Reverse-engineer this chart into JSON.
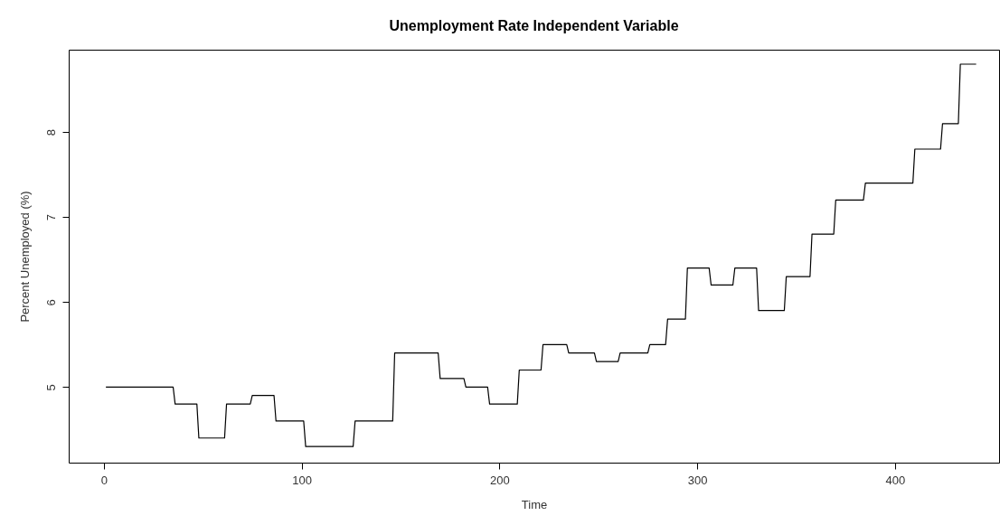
{
  "chart_data": {
    "type": "line",
    "title": "Unemployment Rate Independent Variable",
    "xlabel": "Time",
    "ylabel": "Percent Unemployed (%)",
    "x": [
      1,
      35,
      36,
      47,
      48,
      61,
      62,
      74,
      75,
      86,
      87,
      101,
      102,
      126,
      127,
      146,
      147,
      169,
      170,
      182,
      183,
      194,
      195,
      209,
      210,
      221,
      222,
      234,
      235,
      248,
      249,
      260,
      261,
      275,
      276,
      284,
      285,
      294,
      295,
      306,
      307,
      318,
      319,
      330,
      331,
      344,
      345,
      357,
      358,
      369,
      370,
      384,
      385,
      409,
      410,
      423,
      424,
      432,
      433,
      441
    ],
    "series": [
      {
        "color": "#000000",
        "values": [
          5.0,
          5.0,
          4.8,
          4.8,
          4.4,
          4.4,
          4.8,
          4.8,
          4.9,
          4.9,
          4.6,
          4.6,
          4.3,
          4.3,
          4.6,
          4.6,
          5.4,
          5.4,
          5.1,
          5.1,
          5.0,
          5.0,
          4.8,
          4.8,
          5.2,
          5.2,
          5.5,
          5.5,
          5.4,
          5.4,
          5.3,
          5.3,
          5.4,
          5.4,
          5.5,
          5.5,
          5.8,
          5.8,
          6.4,
          6.4,
          6.2,
          6.2,
          6.4,
          6.4,
          5.9,
          5.9,
          6.3,
          6.3,
          6.8,
          6.8,
          7.2,
          7.2,
          7.4,
          7.4,
          7.8,
          7.8,
          8.1,
          8.1,
          8.8,
          8.8
        ]
      }
    ],
    "xlim": [
      -17.8,
      452.6
    ],
    "ylim": [
      4.11,
      8.97
    ],
    "xticks": [
      0,
      100,
      200,
      300,
      400
    ],
    "yticks": [
      5,
      6,
      7,
      8
    ],
    "grid": false,
    "marker": "none",
    "line_style": "solid"
  }
}
